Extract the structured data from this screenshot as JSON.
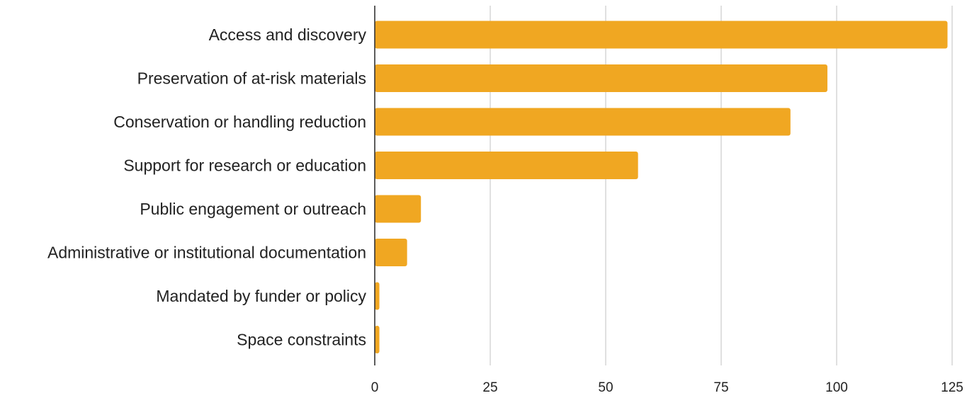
{
  "chart_data": {
    "type": "bar",
    "orientation": "horizontal",
    "categories": [
      "Access and discovery",
      "Preservation of at-risk materials",
      "Conservation or handling reduction",
      "Support for research or education",
      "Public engagement or outreach",
      "Administrative or institutional documentation",
      "Mandated by funder or policy",
      "Space constraints"
    ],
    "values": [
      124,
      98,
      90,
      57,
      10,
      7,
      1,
      1
    ],
    "x_ticks": [
      "0",
      "25",
      "50",
      "75",
      "100",
      "125"
    ],
    "xlim": [
      0,
      125
    ],
    "title": "",
    "xlabel": "",
    "ylabel": "",
    "grid": "vertical",
    "legend": "none",
    "bar_color": "#F0A722",
    "grid_color": "#CCCCCC",
    "axis_color": "#333333"
  }
}
